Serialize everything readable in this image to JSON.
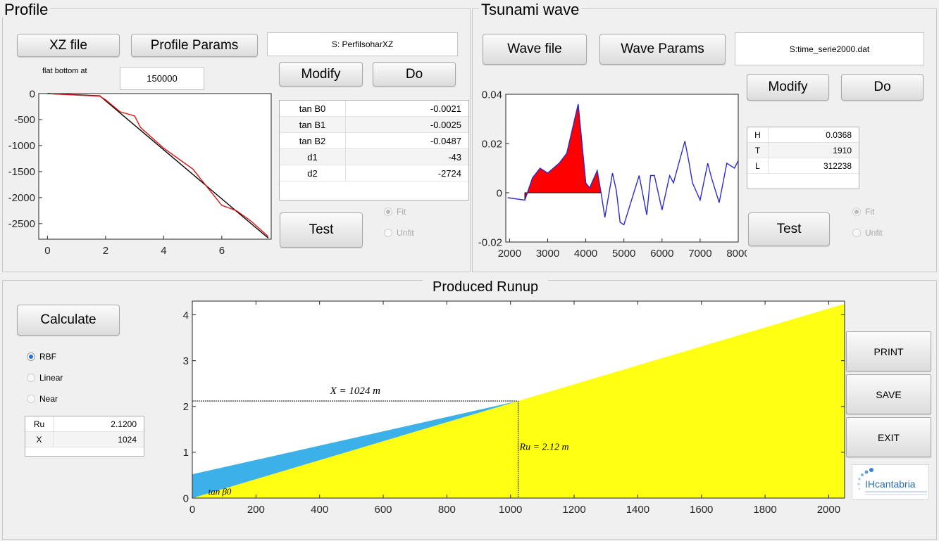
{
  "profile": {
    "title": "Profile",
    "xz_file_label": "XZ file",
    "params_label": "Profile Params",
    "file_name": "S: PerfilsoharXZ",
    "flat_bottom_label": "flat bottom at",
    "flat_bottom_value": "150000",
    "modify_label": "Modify",
    "do_label": "Do",
    "test_label": "Test",
    "fit_label": "Fit",
    "unfit_label": "Unfit",
    "params": [
      {
        "name": "tan B0",
        "value": "-0.0021"
      },
      {
        "name": "tan B1",
        "value": "-0.0025"
      },
      {
        "name": "tan B2",
        "value": "-0.0487"
      },
      {
        "name": "d1",
        "value": "-43"
      },
      {
        "name": "d2",
        "value": "-2724"
      }
    ],
    "y_ticks": [
      "0",
      "-500",
      "-1000",
      "-1500",
      "-2000",
      "-2500"
    ],
    "x_ticks": [
      "0",
      "2",
      "4",
      "6"
    ]
  },
  "tsunami": {
    "title": "Tsunami wave",
    "wave_file_label": "Wave file",
    "params_label": "Wave Params",
    "file_name": "S:time_serie2000.dat",
    "modify_label": "Modify",
    "do_label": "Do",
    "test_label": "Test",
    "fit_label": "Fit",
    "unfit_label": "Unfit",
    "params": [
      {
        "name": "H",
        "value": "0.0368"
      },
      {
        "name": "T",
        "value": "1910"
      },
      {
        "name": "L",
        "value": "312238"
      }
    ],
    "y_ticks": [
      "0.04",
      "0.02",
      "0",
      "-0.02"
    ],
    "x_ticks": [
      "2000",
      "3000",
      "4000",
      "5000",
      "6000",
      "7000",
      "8000"
    ]
  },
  "runup": {
    "title": "Produced Runup",
    "calculate_label": "Calculate",
    "methods": [
      "RBF",
      "Linear",
      "Near"
    ],
    "results": [
      {
        "name": "Ru",
        "value": "2.1200"
      },
      {
        "name": "X",
        "value": "1024"
      }
    ],
    "print_label": "PRINT",
    "save_label": "SAVE",
    "exit_label": "EXIT",
    "logo_text": "IHcantabria",
    "annotation_x": "X = 1024 m",
    "annotation_ru": "Ru = 2.12 m",
    "annotation_tan": "tan β0",
    "y_ticks": [
      "0",
      "1",
      "2",
      "3",
      "4"
    ],
    "x_ticks": [
      "0",
      "200",
      "400",
      "600",
      "800",
      "1000",
      "1200",
      "1400",
      "1600",
      "1800",
      "2000"
    ]
  },
  "colors": {
    "wave_fill": "#ff0000",
    "wave_line": "#2b2bd1",
    "profile_fit": "#000000",
    "profile_data": "#e01010",
    "runup_land": "#ffff14",
    "runup_water": "#3cb0e8"
  },
  "chart_data": [
    {
      "type": "line",
      "series": [
        {
          "x": [
            0,
            1.8,
            2.0,
            2.5,
            3.0,
            3.2,
            4.0,
            5.0,
            5.5,
            6.0,
            6.5,
            7.0,
            7.4,
            7.6
          ],
          "y": [
            0,
            -50,
            -120,
            -350,
            -430,
            -650,
            -1050,
            -1450,
            -1800,
            -2150,
            -2250,
            -2450,
            -2650,
            -2750
          ]
        },
        {
          "x": [
            0,
            1.8,
            7.6
          ],
          "y": [
            0,
            -43,
            -2780
          ]
        }
      ],
      "xlim": [
        -0.3,
        7.7
      ],
      "ylim": [
        -2800,
        0
      ]
    },
    {
      "type": "line",
      "series": [
        {
          "x": [
            1950,
            2400,
            2600,
            2800,
            3000,
            3300,
            3500,
            3800,
            4000,
            4100,
            4300,
            4400,
            4500,
            4700,
            4800,
            4900,
            5000,
            5200,
            5400,
            5600,
            5700,
            5800,
            6000,
            6200,
            6300,
            6600,
            6700,
            6800,
            7000,
            7200,
            7300,
            7500,
            7700,
            7900,
            8000
          ],
          "y": [
            -0.002,
            -0.003,
            0.006,
            0.01,
            0.008,
            0.012,
            0.016,
            0.036,
            0.004,
            0.002,
            0.009,
            0.0,
            -0.01,
            0.008,
            0.001,
            -0.012,
            -0.013,
            -0.003,
            0.007,
            -0.009,
            0.007,
            0.007,
            -0.007,
            0.007,
            0.004,
            0.021,
            0.013,
            0.004,
            -0.003,
            0.012,
            0.006,
            -0.004,
            0.012,
            0.01,
            0.013
          ]
        }
      ],
      "fill_range": [
        2400,
        4400
      ],
      "xlim": [
        1900,
        8000
      ],
      "ylim": [
        -0.02,
        0.04
      ]
    },
    {
      "type": "area",
      "series": [
        {
          "x": [
            0,
            1024,
            2050
          ],
          "y": [
            0,
            2.12,
            4.24
          ]
        }
      ],
      "water_surface": {
        "x": [
          0,
          1024
        ],
        "y": [
          0.52,
          2.12
        ]
      },
      "xlim": [
        0,
        2050
      ],
      "ylim": [
        0,
        4.3
      ]
    }
  ]
}
